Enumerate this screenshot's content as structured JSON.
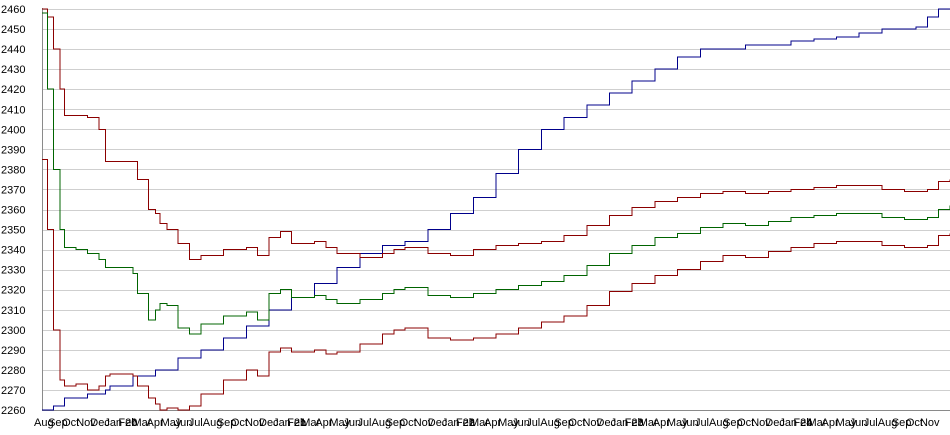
{
  "chart_data": {
    "type": "line",
    "title": "",
    "xlabel": "",
    "ylabel": "",
    "ylim": [
      2260,
      2460
    ],
    "y_ticks": [
      2260,
      2270,
      2280,
      2290,
      2300,
      2310,
      2320,
      2330,
      2340,
      2350,
      2360,
      2370,
      2380,
      2390,
      2400,
      2410,
      2420,
      2430,
      2440,
      2450,
      2460
    ],
    "x_range": [
      0,
      40
    ],
    "x_tick_labels": [
      "Aug",
      "Sep",
      "Oct",
      "Nov",
      "Dec",
      "Jan 20",
      "Feb",
      "Mar",
      "Apr",
      "May",
      "Jun",
      "Jul",
      "Aug",
      "Sep",
      "Oct",
      "Nov",
      "Dec",
      "Jan 21",
      "Feb",
      "Mar",
      "Apr",
      "May",
      "Jun",
      "Jul",
      "Aug",
      "Sep",
      "Oct",
      "Nov",
      "Dec",
      "Jan 22",
      "Feb",
      "Mar",
      "Apr",
      "May",
      "Jun",
      "Jul",
      "Aug",
      "Sep",
      "Oct",
      "Nov",
      "Dec",
      "Jan 23",
      "Feb",
      "Mar",
      "Apr",
      "May",
      "Jun",
      "Jul",
      "Aug",
      "Sep",
      "Oct",
      "Nov",
      "Dec",
      "Jan 24",
      "Feb",
      "Mar",
      "Apr",
      "May",
      "Jun",
      "Jul",
      "Aug",
      "Sep",
      "Oct",
      "Nov"
    ],
    "grid": "horizontal",
    "legend": "none",
    "colors": {
      "trend": "#00008b",
      "band_upper": "#8b0000",
      "band_mid": "#006400",
      "band_lower": "#8b0000"
    },
    "series": [
      {
        "color": "#00008b",
        "x": [
          0,
          0.5,
          1,
          2,
          2.8,
          3,
          4,
          5,
          6,
          7,
          8,
          9,
          10,
          11,
          12,
          13,
          14,
          15,
          16,
          17,
          18,
          19,
          20,
          21,
          22,
          23,
          24,
          25,
          26,
          27,
          28,
          29,
          30,
          31,
          32,
          33,
          34,
          35,
          36,
          37,
          38,
          38.5,
          39,
          39.5,
          40
        ],
        "y": [
          2260,
          2262,
          2266,
          2268,
          2270,
          2272,
          2277,
          2280,
          2286,
          2290,
          2296,
          2302,
          2310,
          2316,
          2323,
          2331,
          2338,
          2342,
          2344,
          2350,
          2358,
          2366,
          2378,
          2390,
          2400,
          2406,
          2412,
          2418,
          2424,
          2430,
          2436,
          2440,
          2440,
          2442,
          2442,
          2444,
          2445,
          2446,
          2448,
          2450,
          2450,
          2451,
          2456,
          2460,
          2460
        ]
      },
      {
        "color": "#8b0000",
        "x": [
          0,
          0.25,
          0.5,
          0.8,
          1,
          1.5,
          2,
          2.5,
          2.8,
          3,
          4,
          4.2,
          4.7,
          5,
          5.2,
          5.5,
          6,
          6.5,
          7,
          8,
          9,
          9.5,
          10,
          10.5,
          11,
          12,
          12.5,
          13,
          14,
          15,
          15.5,
          16,
          17,
          18,
          19,
          20,
          21,
          22,
          23,
          24,
          25,
          26,
          27,
          28,
          29,
          30,
          31,
          32,
          33,
          34,
          35,
          36,
          37,
          38,
          39,
          39.5,
          40
        ],
        "y": [
          2460,
          2456,
          2440,
          2420,
          2407,
          2407,
          2406,
          2400,
          2384,
          2384,
          2384,
          2375,
          2360,
          2358,
          2353,
          2350,
          2343,
          2335,
          2337,
          2340,
          2341,
          2337,
          2346,
          2349,
          2343,
          2344,
          2341,
          2338,
          2336,
          2338,
          2340,
          2341,
          2338,
          2337,
          2340,
          2342,
          2343,
          2344,
          2347,
          2352,
          2357,
          2361,
          2364,
          2366,
          2368,
          2369,
          2368,
          2369,
          2370,
          2371,
          2372,
          2372,
          2370,
          2369,
          2370,
          2374,
          2375
        ]
      },
      {
        "color": "#006400",
        "x": [
          0,
          0.25,
          0.5,
          0.8,
          1,
          1.5,
          2,
          2.5,
          2.8,
          3,
          4,
          4.2,
          4.7,
          5,
          5.2,
          5.5,
          6,
          6.5,
          7,
          8,
          9,
          9.5,
          10,
          10.5,
          11,
          12,
          12.5,
          13,
          14,
          15,
          15.5,
          16,
          17,
          18,
          19,
          20,
          21,
          22,
          23,
          24,
          25,
          26,
          27,
          28,
          29,
          30,
          31,
          32,
          33,
          34,
          35,
          36,
          37,
          38,
          39,
          39.5,
          40
        ],
        "y": [
          2458,
          2420,
          2380,
          2350,
          2341,
          2340,
          2338,
          2335,
          2331,
          2331,
          2328,
          2318,
          2305,
          2310,
          2313,
          2312,
          2301,
          2298,
          2303,
          2307,
          2309,
          2305,
          2318,
          2320,
          2316,
          2317,
          2315,
          2313,
          2315,
          2318,
          2320,
          2321,
          2317,
          2316,
          2318,
          2320,
          2322,
          2324,
          2327,
          2332,
          2338,
          2342,
          2346,
          2348,
          2351,
          2353,
          2352,
          2354,
          2356,
          2357,
          2358,
          2358,
          2356,
          2355,
          2356,
          2360,
          2362
        ]
      },
      {
        "color": "#8b0000",
        "x": [
          0,
          0.25,
          0.5,
          0.8,
          1,
          1.5,
          2,
          2.5,
          2.8,
          3,
          4,
          4.2,
          4.7,
          5,
          5.2,
          5.5,
          6,
          6.5,
          7,
          8,
          9,
          9.5,
          10,
          10.5,
          11,
          12,
          12.5,
          13,
          14,
          15,
          15.5,
          16,
          17,
          18,
          19,
          20,
          21,
          22,
          23,
          24,
          25,
          26,
          27,
          28,
          29,
          30,
          31,
          32,
          33,
          34,
          35,
          36,
          37,
          38,
          39,
          39.5,
          40
        ],
        "y": [
          2385,
          2350,
          2300,
          2275,
          2272,
          2273,
          2270,
          2272,
          2277,
          2278,
          2277,
          2272,
          2266,
          2263,
          2260,
          2261,
          2260,
          2262,
          2268,
          2275,
          2280,
          2277,
          2289,
          2291,
          2289,
          2290,
          2288,
          2289,
          2293,
          2298,
          2300,
          2301,
          2296,
          2295,
          2296,
          2298,
          2301,
          2304,
          2307,
          2312,
          2319,
          2323,
          2327,
          2330,
          2334,
          2337,
          2336,
          2339,
          2341,
          2343,
          2344,
          2344,
          2342,
          2341,
          2342,
          2347,
          2348
        ]
      }
    ]
  }
}
